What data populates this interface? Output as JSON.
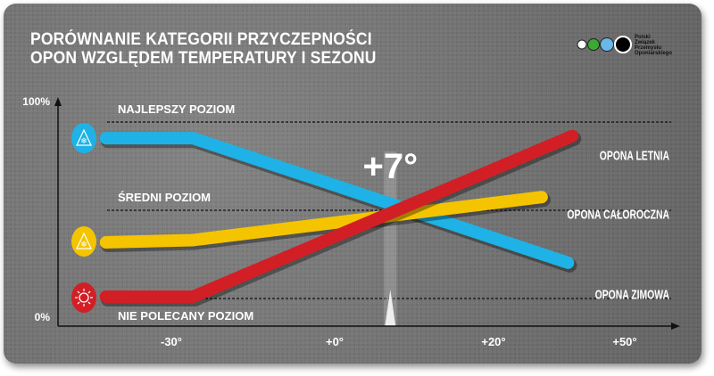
{
  "title": [
    "PORÓWNANIE KATEGORII PRZYCZEPNOŚCI",
    "OPON WZGLĘDEM TEMPERATURY I SEZONU"
  ],
  "logo": {
    "letters": [
      "P",
      "Z",
      "P",
      "O"
    ],
    "words": [
      "OLSKI",
      "WIĄZEK",
      "RZEMYSŁU",
      "PONIARSKIEGO"
    ],
    "circle_colors": [
      "#ffffff",
      "#3aaa35",
      "#6ab7e8",
      "#000000"
    ]
  },
  "chart_data": {
    "type": "line",
    "xlabel": "",
    "ylabel": "",
    "x_ticks": [
      {
        "label": "-30°",
        "value": -30
      },
      {
        "label": "+0°",
        "value": 0
      },
      {
        "label": "+20°",
        "value": 20
      },
      {
        "label": "+50°",
        "value": 50
      }
    ],
    "y_ticks": [
      {
        "label": "100%",
        "value": 100
      },
      {
        "label": "0%",
        "value": 0
      }
    ],
    "ylim": [
      0,
      100
    ],
    "reference_lines": [
      {
        "label": "NAJLEPSZY POZIOM",
        "value": 90
      },
      {
        "label": "ŚREDNI POZIOM",
        "value": 51
      },
      {
        "label": "NIE POLECANY POZIOM",
        "value": 12
      }
    ],
    "marker": {
      "label": "+7°",
      "value": 7
    },
    "series": [
      {
        "name": "OPONA ZIMOWA",
        "color": "#1eb2e6",
        "icon": "snowflake-mountain-icon",
        "x": [
          -42,
          -26,
          37
        ],
        "y": [
          83,
          83,
          28
        ]
      },
      {
        "name": "OPONA CAŁOROCZNA",
        "color": "#f5c400",
        "icon": "snowflake-sun-icon",
        "x": [
          -42,
          -26,
          31
        ],
        "y": [
          37,
          38,
          57
        ]
      },
      {
        "name": "OPONA LETNIA",
        "color": "#d21f26",
        "icon": "sun-icon",
        "x": [
          -42,
          -26,
          38
        ],
        "y": [
          13,
          13,
          84
        ]
      }
    ]
  }
}
